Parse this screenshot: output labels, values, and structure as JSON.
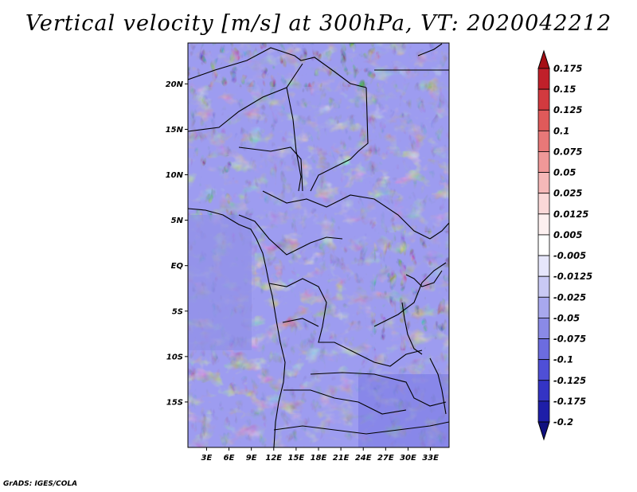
{
  "figure": {
    "title": "Vertical velocity [m/s] at 300hPa, VT: 2020042212",
    "credit": "GrADS: IGES/COLA"
  },
  "map": {
    "variable": "Vertical velocity",
    "units": "m/s",
    "level": "300hPa",
    "valid_time": "2020042212",
    "lon_ticks": [
      "3E",
      "6E",
      "9E",
      "12E",
      "15E",
      "18E",
      "21E",
      "24E",
      "27E",
      "30E",
      "33E"
    ],
    "lat_ticks": [
      "20N",
      "15N",
      "10N",
      "5N",
      "EQ",
      "5S",
      "10S",
      "15S"
    ],
    "lon_values": [
      3,
      6,
      9,
      12,
      15,
      18,
      21,
      24,
      27,
      30,
      33
    ],
    "lat_values": [
      20,
      15,
      10,
      5,
      0,
      -5,
      -10,
      -15
    ],
    "lon_range": [
      0.5,
      35.5
    ],
    "lat_range": [
      -20,
      24.5
    ]
  },
  "colorbar": {
    "labels": [
      "0.175",
      "0.15",
      "0.125",
      "0.1",
      "0.075",
      "0.05",
      "0.025",
      "0.0125",
      "0.005",
      "-0.005",
      "-0.0125",
      "-0.025",
      "-0.05",
      "-0.075",
      "-0.1",
      "-0.125",
      "-0.175",
      "-0.2"
    ],
    "colors": [
      "#a50f15",
      "#c0202a",
      "#d23a3f",
      "#df5a5a",
      "#e87878",
      "#f09898",
      "#f5b8b8",
      "#fad8d8",
      "#fdf0f0",
      "#ffffff",
      "#e6e6fb",
      "#c9c9f4",
      "#a8a8ee",
      "#8a8ae6",
      "#6c6cdf",
      "#4f4fd6",
      "#3434c4",
      "#1e1ea8",
      "#10107f"
    ]
  }
}
